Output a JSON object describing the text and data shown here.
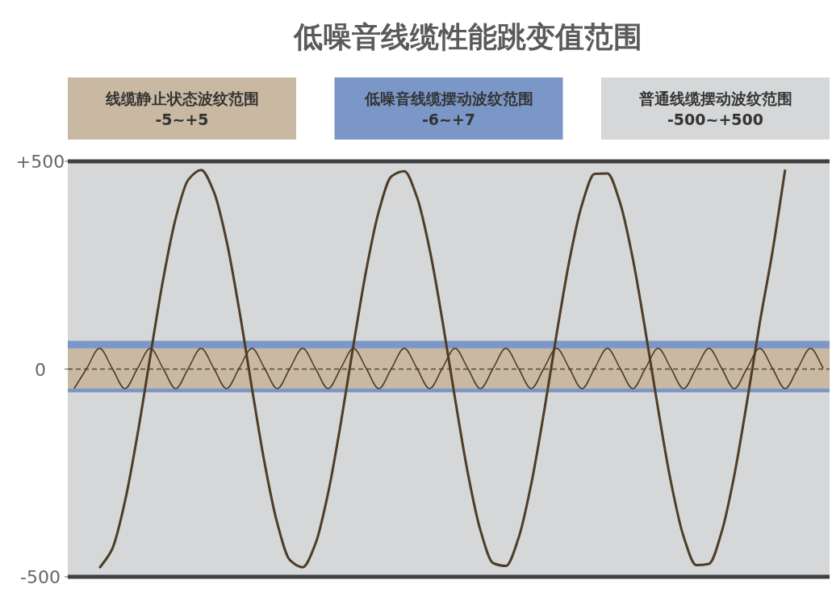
{
  "chart_data": {
    "type": "line",
    "title": "低噪音线缆性能跳变值范围",
    "categories": [
      null,
      null,
      null,
      null,
      null,
      null,
      null,
      null,
      null,
      null,
      null,
      null,
      null,
      null,
      null,
      null,
      null,
      null,
      null,
      null,
      null,
      null,
      null,
      null,
      null,
      null,
      null,
      null,
      null,
      null,
      null,
      null,
      null,
      null,
      null,
      null,
      null,
      null,
      null,
      null,
      null,
      null,
      null,
      null,
      null,
      null,
      null,
      null,
      null,
      null,
      null,
      null,
      null,
      null,
      null,
      null,
      null,
      null,
      null,
      null
    ],
    "ylim": [
      -500,
      500
    ],
    "yticks": [
      {
        "value": 500,
        "label": "+500"
      },
      {
        "value": 0,
        "label": "0"
      },
      {
        "value": -500,
        "label": "-500"
      }
    ],
    "tick_labels": "y",
    "grid": false,
    "marker": "none",
    "line_style": "solid",
    "bands": [
      {
        "axis": "y",
        "from": -500,
        "to": 500,
        "color": "#d5d7d9"
      },
      {
        "axis": "y",
        "from": -56,
        "to": 68,
        "color": "#7b97c8"
      },
      {
        "axis": "y",
        "from": -47,
        "to": 50,
        "color": "#c9b9a2"
      }
    ],
    "annotations": [
      "线缆静止状态波纹范围\n-5~+5",
      "低噪音线缆摆动波纹范围\n-6~+7",
      "普通线缆摆动波纹范围\n-500~+500"
    ],
    "ref_lines": [
      {
        "axis": "y",
        "value": 500,
        "color": "#404040",
        "line_style": "solid"
      },
      {
        "axis": "y",
        "value": -500,
        "color": "#404040",
        "line_style": "solid"
      },
      {
        "axis": "y",
        "value": 0,
        "color": "#4a4a4a",
        "line_style": "dashed"
      }
    ],
    "series": [
      {
        "color": "#4e3d26",
        "values": [
          null,
          null,
          -479,
          -433,
          -319,
          -156,
          31,
          214,
          363,
          456,
          479,
          427,
          309,
          143,
          -45,
          -226,
          -371,
          -460,
          -477,
          -421,
          -299,
          -131,
          58,
          237,
          380,
          464,
          476,
          414,
          288,
          118,
          -71,
          -249,
          -388,
          -467,
          -474,
          -407,
          -277,
          -105,
          84,
          260,
          396,
          470,
          471,
          400,
          266,
          91,
          -97,
          -271,
          -403,
          -472,
          -469,
          -392,
          -255,
          -78,
          111,
          282,
          480,
          null,
          null,
          null
        ]
      },
      {
        "color": "#4e3d26",
        "values": [
          -47,
          2,
          50,
          2,
          -47,
          2,
          50,
          2,
          -47,
          2,
          50,
          2,
          -47,
          2,
          50,
          2,
          -47,
          2,
          50,
          2,
          -47,
          2,
          50,
          2,
          -47,
          2,
          50,
          2,
          -47,
          2,
          50,
          2,
          -47,
          2,
          50,
          2,
          -47,
          2,
          50,
          2,
          -47,
          2,
          50,
          2,
          -47,
          2,
          50,
          2,
          -47,
          2,
          50,
          2,
          -47,
          2,
          50,
          2,
          -47,
          2,
          50,
          2
        ]
      }
    ]
  }
}
